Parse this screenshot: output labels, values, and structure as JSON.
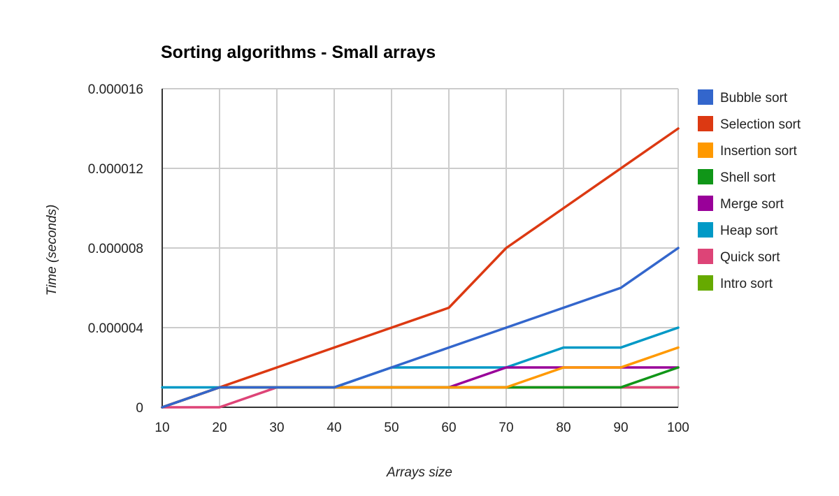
{
  "chart_data": {
    "type": "line",
    "title": "Sorting algorithms - Small arrays",
    "xlabel": "Arrays size",
    "ylabel": "Time (seconds)",
    "x": [
      10,
      20,
      30,
      40,
      50,
      60,
      70,
      80,
      90,
      100
    ],
    "x_tick_labels": [
      "10",
      "20",
      "30",
      "40",
      "50",
      "60",
      "70",
      "80",
      "90",
      "100"
    ],
    "ylim": [
      0,
      1.6e-05
    ],
    "y_ticks": [
      0,
      4e-06,
      8e-06,
      1.2e-05,
      1.6e-05
    ],
    "y_tick_labels": [
      "0",
      "0.000004",
      "0.000008",
      "0.000012",
      "0.000016"
    ],
    "grid": true,
    "legend_position": "right",
    "series": [
      {
        "name": "Bubble sort",
        "color": "#3366cc",
        "values": [
          0,
          1e-06,
          1e-06,
          1e-06,
          2e-06,
          3e-06,
          4e-06,
          5e-06,
          6e-06,
          8e-06
        ]
      },
      {
        "name": "Selection sort",
        "color": "#dc3912",
        "values": [
          0,
          1e-06,
          2e-06,
          3e-06,
          4e-06,
          5e-06,
          8e-06,
          1e-05,
          1.2e-05,
          1.4e-05
        ]
      },
      {
        "name": "Insertion sort",
        "color": "#ff9900",
        "values": [
          0,
          1e-06,
          1e-06,
          1e-06,
          1e-06,
          1e-06,
          1e-06,
          2e-06,
          2e-06,
          3e-06
        ]
      },
      {
        "name": "Shell sort",
        "color": "#109618",
        "values": [
          0,
          1e-06,
          1e-06,
          1e-06,
          1e-06,
          1e-06,
          1e-06,
          1e-06,
          1e-06,
          2e-06
        ]
      },
      {
        "name": "Merge sort",
        "color": "#990099",
        "values": [
          0,
          1e-06,
          1e-06,
          1e-06,
          1e-06,
          1e-06,
          2e-06,
          2e-06,
          2e-06,
          2e-06
        ]
      },
      {
        "name": "Heap sort",
        "color": "#0099c6",
        "values": [
          1e-06,
          1e-06,
          1e-06,
          1e-06,
          2e-06,
          2e-06,
          2e-06,
          3e-06,
          3e-06,
          4e-06
        ]
      },
      {
        "name": "Quick sort",
        "color": "#dd4477",
        "values": [
          0,
          0,
          1e-06,
          1e-06,
          1e-06,
          1e-06,
          1e-06,
          1e-06,
          1e-06,
          1e-06
        ]
      },
      {
        "name": "Intro sort",
        "color": "#66aa00",
        "values": [
          0,
          1e-06,
          1e-06,
          1e-06,
          1e-06,
          1e-06,
          1e-06,
          1e-06,
          1e-06,
          1e-06
        ]
      }
    ]
  }
}
